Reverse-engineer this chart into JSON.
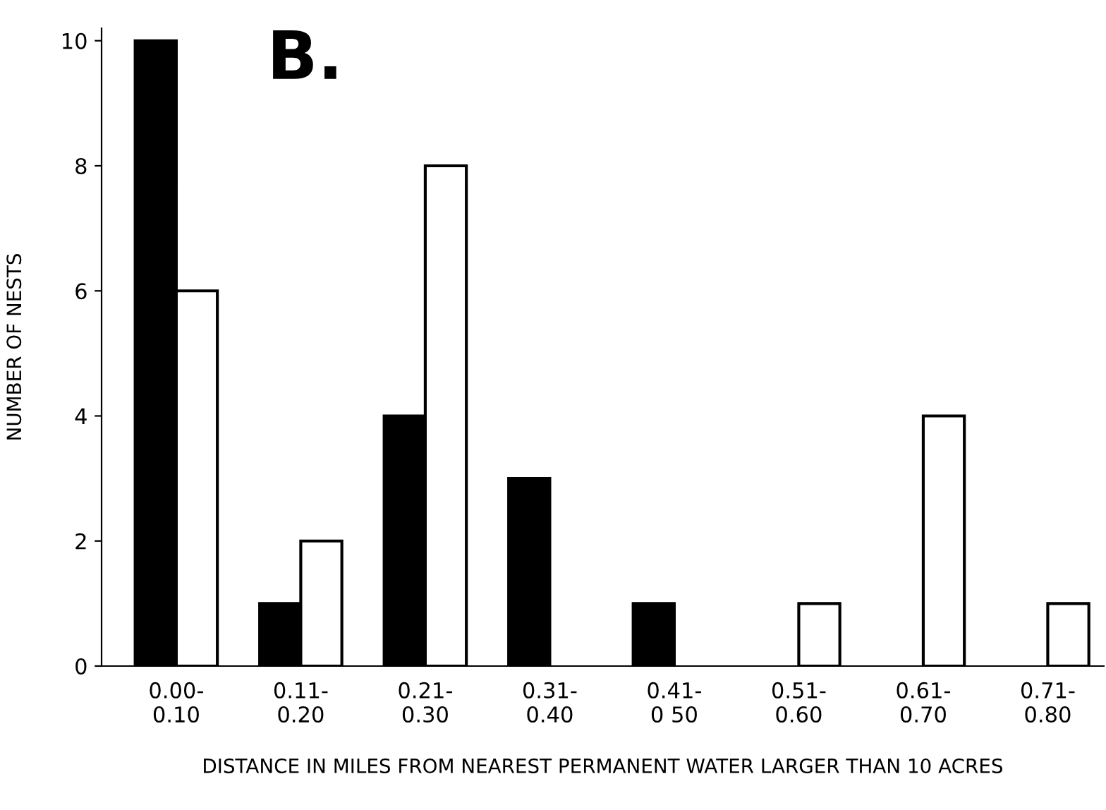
{
  "chart_data": {
    "type": "bar",
    "title": "B.",
    "xlabel": "DISTANCE IN MILES FROM NEAREST PERMANENT WATER LARGER THAN 10 ACRES",
    "ylabel": "NUMBER OF NESTS",
    "categories": [
      "0.00-\n0.10",
      "0.11-\n0.20",
      "0.21-\n0.30",
      "0.31-\n0.40",
      "0.41-\n0 50",
      "0.51-\n0.60",
      "0.61-\n0.70",
      "0.71-\n0.80"
    ],
    "series": [
      {
        "color": "#000000",
        "values": [
          10,
          1,
          4,
          3,
          1,
          null,
          null,
          null
        ]
      },
      {
        "color": "#ffffff",
        "values": [
          6,
          2,
          8,
          null,
          null,
          1,
          4,
          1
        ]
      }
    ],
    "ylim": [
      0,
      10.2
    ],
    "yticks": [
      0,
      2,
      4,
      6,
      8,
      10
    ]
  }
}
